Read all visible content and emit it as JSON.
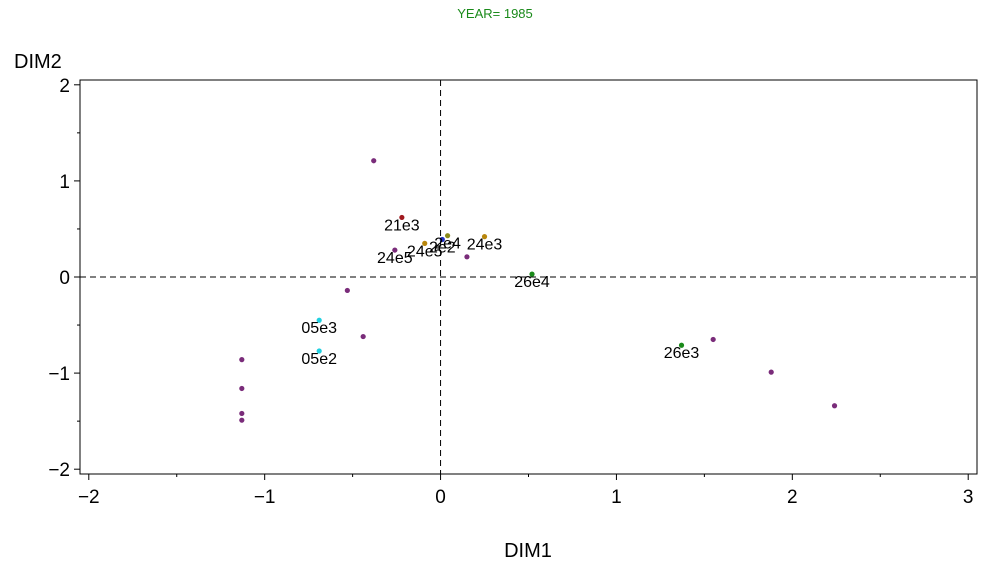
{
  "chart_data": {
    "type": "scatter",
    "title": "YEAR= 1985",
    "xlabel": "DIM1",
    "ylabel": "DIM2",
    "xlim": [
      -2.05,
      3.05
    ],
    "ylim": [
      -2.05,
      2.05
    ],
    "xticks": [
      {
        "value": -2,
        "label": "−2"
      },
      {
        "value": -1,
        "label": "−1"
      },
      {
        "value": 0,
        "label": "0"
      },
      {
        "value": 1,
        "label": "1"
      },
      {
        "value": 2,
        "label": "2"
      },
      {
        "value": 3,
        "label": "3"
      }
    ],
    "yticks": [
      {
        "value": -2,
        "label": "−2"
      },
      {
        "value": -1,
        "label": "−1"
      },
      {
        "value": 0,
        "label": "0"
      },
      {
        "value": 1,
        "label": "1"
      },
      {
        "value": 2,
        "label": "2"
      }
    ],
    "reference_lines": {
      "x": 0,
      "y": 0,
      "style": "dashed"
    },
    "grid": false,
    "points": [
      {
        "x": -0.38,
        "y": 1.21,
        "color": "#7a2c7a",
        "label": ""
      },
      {
        "x": -0.22,
        "y": 0.62,
        "color": "#a0181e",
        "label": "21e3"
      },
      {
        "x": -0.26,
        "y": 0.28,
        "color": "#7a2c7a",
        "label": "24e5"
      },
      {
        "x": -0.09,
        "y": 0.35,
        "color": "#b8860b",
        "label": "24e5"
      },
      {
        "x": 0.01,
        "y": 0.39,
        "color": "#2030c0",
        "label": "2e2"
      },
      {
        "x": 0.04,
        "y": 0.43,
        "color": "#8a8a1a",
        "label": "2e4"
      },
      {
        "x": 0.25,
        "y": 0.42,
        "color": "#b8860b",
        "label": "24e3"
      },
      {
        "x": 0.15,
        "y": 0.21,
        "color": "#7a2c7a",
        "label": ""
      },
      {
        "x": 0.52,
        "y": 0.03,
        "color": "#1a8a1a",
        "label": "26e4"
      },
      {
        "x": -0.53,
        "y": -0.14,
        "color": "#7a2c7a",
        "label": ""
      },
      {
        "x": -0.69,
        "y": -0.45,
        "color": "#20d0e0",
        "label": "05e3"
      },
      {
        "x": -0.44,
        "y": -0.62,
        "color": "#7a2c7a",
        "label": ""
      },
      {
        "x": -0.69,
        "y": -0.77,
        "color": "#20d0e0",
        "label": "05e2"
      },
      {
        "x": -1.13,
        "y": -0.86,
        "color": "#7a2c7a",
        "label": ""
      },
      {
        "x": -1.13,
        "y": -1.16,
        "color": "#7a2c7a",
        "label": ""
      },
      {
        "x": -1.13,
        "y": -1.42,
        "color": "#7a2c7a",
        "label": ""
      },
      {
        "x": -1.13,
        "y": -1.49,
        "color": "#7a2c7a",
        "label": ""
      },
      {
        "x": 1.37,
        "y": -0.71,
        "color": "#1a8a1a",
        "label": "26e3"
      },
      {
        "x": 1.55,
        "y": -0.65,
        "color": "#7a2c7a",
        "label": ""
      },
      {
        "x": 1.88,
        "y": -0.99,
        "color": "#7a2c7a",
        "label": ""
      },
      {
        "x": 2.24,
        "y": -1.34,
        "color": "#7a2c7a",
        "label": ""
      }
    ]
  },
  "colors": {
    "title": "#1a8a1a",
    "axis": "#000000",
    "reference_line": "#000000"
  }
}
